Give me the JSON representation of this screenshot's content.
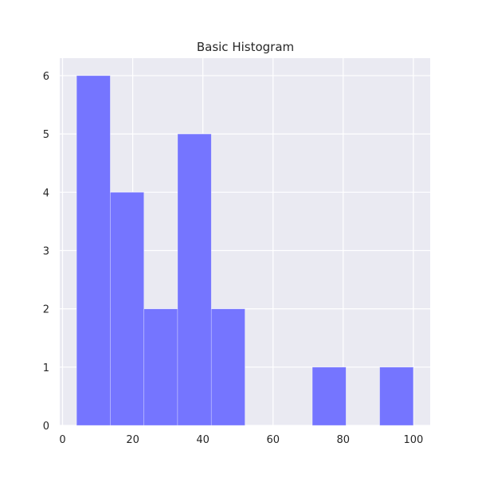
{
  "chart_data": {
    "type": "bar",
    "title": "Basic Histogram",
    "xlabel": "",
    "ylabel": "",
    "bins": [
      {
        "start": 4,
        "end": 13.6,
        "count": 6
      },
      {
        "start": 13.6,
        "end": 23.2,
        "count": 4
      },
      {
        "start": 23.2,
        "end": 32.8,
        "count": 2
      },
      {
        "start": 32.8,
        "end": 42.4,
        "count": 5
      },
      {
        "start": 42.4,
        "end": 52,
        "count": 2
      },
      {
        "start": 52,
        "end": 61.6,
        "count": 0
      },
      {
        "start": 61.6,
        "end": 71.2,
        "count": 0
      },
      {
        "start": 71.2,
        "end": 80.8,
        "count": 1
      },
      {
        "start": 80.8,
        "end": 90.4,
        "count": 0
      },
      {
        "start": 90.4,
        "end": 100,
        "count": 1
      }
    ],
    "xlim": [
      -0.8,
      104.8
    ],
    "ylim": [
      0,
      6.3
    ],
    "xticks": [
      0,
      20,
      40,
      60,
      80,
      100
    ],
    "yticks": [
      0,
      1,
      2,
      3,
      4,
      5,
      6
    ],
    "grid": true,
    "bar_color": "#7575ff",
    "background_color": "#eaeaf2",
    "grid_color": "#ffffff"
  }
}
